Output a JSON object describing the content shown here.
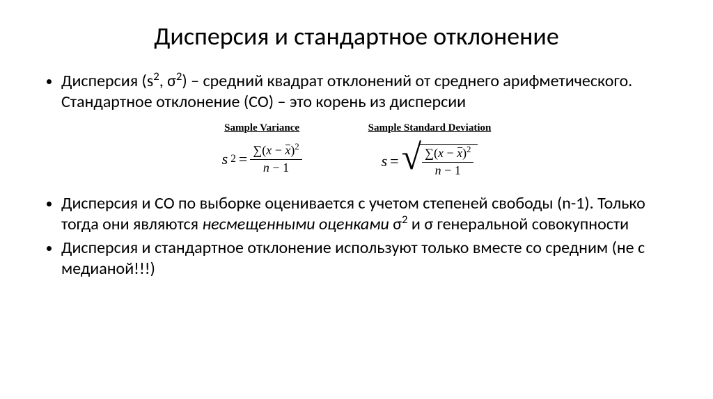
{
  "title": "Дисперсия и стандартное отклонение",
  "bullets": {
    "b1_pre": "Дисперсия (s",
    "b1_sup1": "2",
    "b1_mid1": ", σ",
    "b1_sup2": "2",
    "b1_post": ") – средний квадрат отклонений от среднего арифметического. Стандартное отклонение (СО) – это корень из дисперсии",
    "b2_pre": "Дисперсия и СО по выборке оценивается с учетом степеней свободы (n-1). Только тогда они являются ",
    "b2_em": "несмещенными оценками",
    "b2_mid": " σ",
    "b2_sup": "2",
    "b2_post": " и σ генеральной совокупности",
    "b3": "Дисперсия и стандартное отклонение используют только вместе со средним (не с медианой!!!)"
  },
  "formulas": {
    "variance_title": "Sample Variance",
    "sd_title": "Sample Standard Deviation",
    "s2": "s",
    "sup2": "2",
    "eq": " = ",
    "sum": "∑",
    "lpar": "(",
    "x": "x",
    "minus": " − ",
    "xbar": "x",
    "rpar": ")",
    "num_sup": "2",
    "den_n": "n",
    "den_minus": " − ",
    "den_one": "1",
    "s": "s"
  },
  "style": {
    "background": "#ffffff",
    "text_color": "#000000",
    "title_fontsize": 36,
    "body_fontsize": 24,
    "formula_title_fontsize": 15,
    "formula_fontsize": 22
  }
}
